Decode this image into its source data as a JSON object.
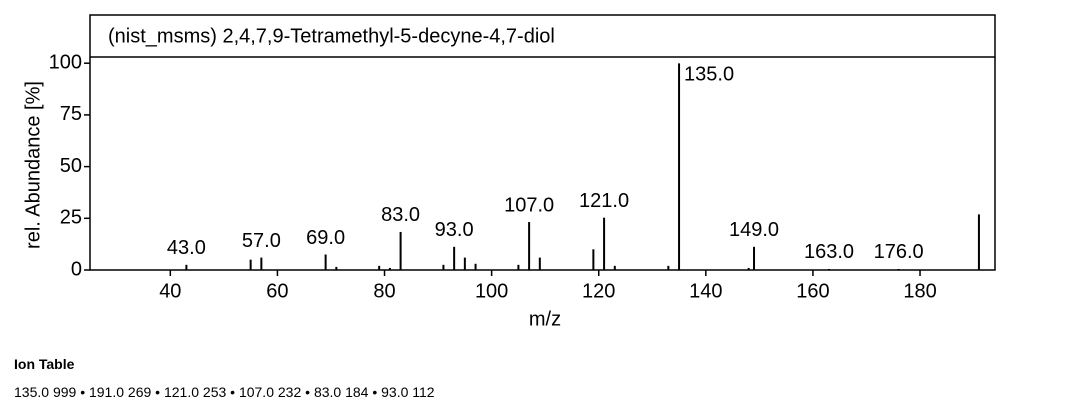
{
  "chart_data": {
    "type": "bar",
    "title": "(nist_msms) 2,4,7,9-Tetramethyl-5-decyne-4,7-diol",
    "x_label": "m/z",
    "y_label": "rel. Abundance [%]",
    "x": [
      43,
      55,
      57,
      69,
      71,
      79,
      81,
      83,
      91,
      93,
      95,
      97,
      105,
      107,
      109,
      119,
      121,
      123,
      133,
      135,
      148,
      149,
      163,
      176,
      191
    ],
    "values": [
      2.5,
      5,
      6,
      7.5,
      1.5,
      2,
      1,
      18.4,
      2.5,
      11.2,
      6,
      3,
      2.5,
      23.2,
      6,
      10,
      25.3,
      2,
      2,
      99.9,
      1,
      11.2,
      0.5,
      0.5,
      26.9
    ],
    "peak_labels": [
      "43.0",
      null,
      "57.0",
      "69.0",
      null,
      null,
      null,
      "83.0",
      null,
      "93.0",
      null,
      null,
      null,
      "107.0",
      null,
      null,
      "121.0",
      null,
      null,
      "135.0",
      null,
      "149.0",
      "163.0",
      "176.0",
      null
    ],
    "color": "#000000",
    "xlim": [
      25,
      194
    ],
    "xticks": [
      40,
      60,
      80,
      100,
      120,
      140,
      160,
      180
    ],
    "ylim": [
      0,
      103
    ],
    "yticks": [
      0,
      25,
      50,
      75,
      100
    ]
  },
  "ion_table": {
    "title": "Ion Table",
    "separator": "•",
    "entries": [
      {
        "mz": "135.0",
        "intensity": "999"
      },
      {
        "mz": "191.0",
        "intensity": "269"
      },
      {
        "mz": "121.0",
        "intensity": "253"
      },
      {
        "mz": "107.0",
        "intensity": "232"
      },
      {
        "mz": "83.0",
        "intensity": "184"
      },
      {
        "mz": "93.0",
        "intensity": "112"
      }
    ]
  }
}
